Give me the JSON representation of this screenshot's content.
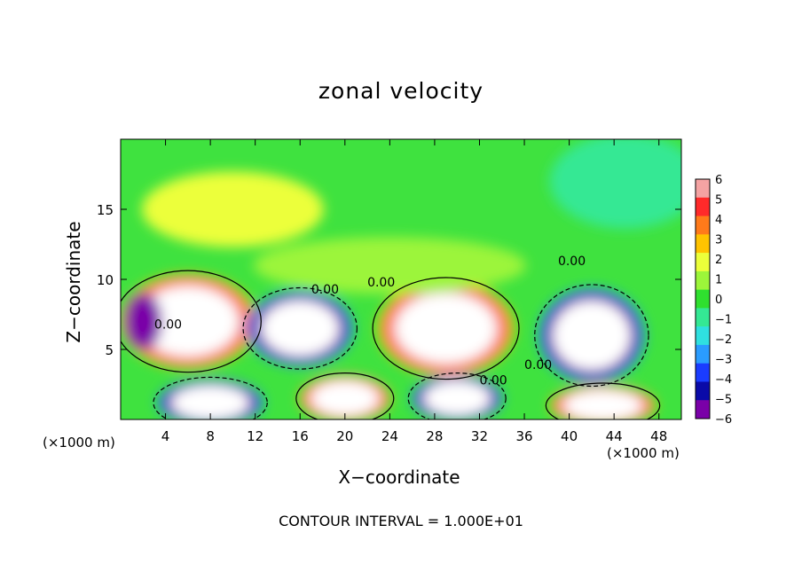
{
  "chart_data": {
    "type": "heatmap",
    "title": "zonal velocity",
    "xlabel": "X−coordinate",
    "ylabel": "Z−coordinate",
    "x_unit": "(×1000 m)",
    "x_ticks": [
      4,
      8,
      12,
      16,
      20,
      24,
      28,
      32,
      36,
      40,
      44,
      48
    ],
    "y_ticks": [
      5,
      10,
      15
    ],
    "xlim": [
      0,
      50
    ],
    "ylim": [
      0,
      20
    ],
    "colorbar": {
      "ticks": [
        6,
        5,
        4,
        3,
        2,
        1,
        0,
        -1,
        -2,
        -3,
        -4,
        -5,
        -6
      ],
      "range": [
        -6,
        6
      ],
      "colors": [
        "#f4a3a3",
        "#ff2a2a",
        "#ff7a1a",
        "#ffc300",
        "#ecff3a",
        "#9cf53a",
        "#2fe02f",
        "#34e894",
        "#2fe0e0",
        "#2a9cff",
        "#1a3cff",
        "#0a0aa8",
        "#7a00a8"
      ]
    },
    "contour_labels": [
      "0.00",
      "0.00",
      "0.00",
      "0.00",
      "0.00",
      "0.00"
    ],
    "cells": [
      {
        "x": 6,
        "z": 7,
        "w": 9,
        "h": 5,
        "v": 8
      },
      {
        "x": 2,
        "z": 7,
        "w": 2.5,
        "h": 3,
        "v": -6
      },
      {
        "x": 16,
        "z": 6.5,
        "w": 7,
        "h": 4,
        "v": -7
      },
      {
        "x": 29,
        "z": 6.5,
        "w": 9,
        "h": 5,
        "v": 8
      },
      {
        "x": 42,
        "z": 6,
        "w": 7,
        "h": 5,
        "v": -7
      },
      {
        "x": 20,
        "z": 1.5,
        "w": 6,
        "h": 2.5,
        "v": 8
      },
      {
        "x": 8,
        "z": 1.2,
        "w": 7,
        "h": 2.5,
        "v": -7
      },
      {
        "x": 30,
        "z": 1.5,
        "w": 6,
        "h": 2.5,
        "v": -7
      },
      {
        "x": 43,
        "z": 1.0,
        "w": 7,
        "h": 2.2,
        "v": 8
      },
      {
        "x": 10,
        "z": 15,
        "w": 12,
        "h": 4,
        "v": 1.6
      },
      {
        "x": 24,
        "z": 11,
        "w": 18,
        "h": 3,
        "v": 0.8
      },
      {
        "x": 45,
        "z": 17,
        "w": 10,
        "h": 5,
        "v": -1
      }
    ]
  },
  "footer": "CONTOUR INTERVAL = 1.000E+01"
}
